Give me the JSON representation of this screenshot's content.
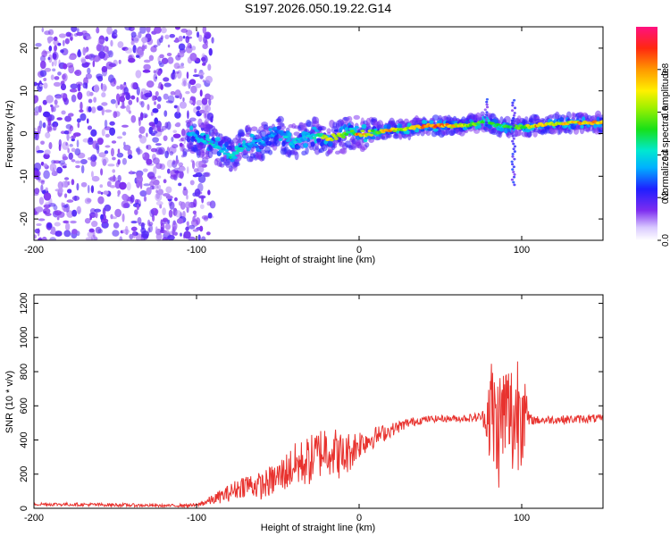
{
  "title": "S197.2026.050.19.22.G14",
  "colors": {
    "snr_line": "#e8322e",
    "axis": "#000000"
  },
  "chart_data": [
    {
      "type": "heatmap",
      "name": "spectrogram",
      "xlabel": "Height of straight line (km)",
      "ylabel": "Frequency (Hz)",
      "xlim": [
        -200,
        150
      ],
      "ylim": [
        -25,
        25
      ],
      "xticks": [
        "-200",
        "-100",
        "0",
        "100"
      ],
      "yticks": [
        "-20",
        "-10",
        "0",
        "10",
        "20"
      ],
      "xtick_values": [
        -200,
        -100,
        0,
        100
      ],
      "ytick_values": [
        -20,
        -10,
        0,
        10,
        20
      ],
      "colorbar": {
        "label": "Normalized spectral amplitude",
        "range": [
          0,
          1
        ],
        "ticks": [
          "0.0",
          "0.2",
          "0.4",
          "0.6",
          "0.8"
        ],
        "tick_values": [
          0.0,
          0.2,
          0.4,
          0.6,
          0.8
        ]
      },
      "noise_region_x": [
        -200,
        -95
      ],
      "ridge": [
        {
          "x": -105,
          "y": 0.0,
          "a": 0.35
        },
        {
          "x": -95,
          "y": -1.5,
          "a": 0.45
        },
        {
          "x": -85,
          "y": -3.5,
          "a": 0.4
        },
        {
          "x": -78,
          "y": -5.5,
          "a": 0.5
        },
        {
          "x": -70,
          "y": -2.5,
          "a": 0.4
        },
        {
          "x": -60,
          "y": -2.0,
          "a": 0.35
        },
        {
          "x": -50,
          "y": 0.5,
          "a": 0.35
        },
        {
          "x": -42,
          "y": -2.0,
          "a": 0.45
        },
        {
          "x": -35,
          "y": -1.0,
          "a": 0.4
        },
        {
          "x": -25,
          "y": -0.5,
          "a": 0.45
        },
        {
          "x": -18,
          "y": -1.0,
          "a": 0.85
        },
        {
          "x": -10,
          "y": -0.5,
          "a": 0.6
        },
        {
          "x": -5,
          "y": 0.5,
          "a": 0.5
        },
        {
          "x": 0,
          "y": 0.0,
          "a": 0.9
        },
        {
          "x": 10,
          "y": 0.3,
          "a": 0.6
        },
        {
          "x": 18,
          "y": 0.8,
          "a": 0.85
        },
        {
          "x": 30,
          "y": 1.2,
          "a": 0.65
        },
        {
          "x": 40,
          "y": 1.8,
          "a": 0.9
        },
        {
          "x": 50,
          "y": 1.8,
          "a": 0.9
        },
        {
          "x": 60,
          "y": 1.8,
          "a": 0.75
        },
        {
          "x": 70,
          "y": 2.2,
          "a": 0.6
        },
        {
          "x": 78,
          "y": 3.0,
          "a": 0.55
        },
        {
          "x": 85,
          "y": 1.8,
          "a": 0.5
        },
        {
          "x": 92,
          "y": 1.5,
          "a": 0.55
        },
        {
          "x": 100,
          "y": 1.5,
          "a": 0.65
        },
        {
          "x": 108,
          "y": 1.8,
          "a": 0.85
        },
        {
          "x": 120,
          "y": 2.3,
          "a": 0.75
        },
        {
          "x": 135,
          "y": 2.5,
          "a": 0.8
        },
        {
          "x": 150,
          "y": 2.6,
          "a": 0.85
        }
      ]
    },
    {
      "type": "line",
      "name": "snr",
      "xlabel": "Height of straight line (km)",
      "ylabel": "SNR (10 * v/v)",
      "xlim": [
        -200,
        150
      ],
      "ylim": [
        0,
        1250
      ],
      "xticks": [
        "-200",
        "-100",
        "0",
        "100"
      ],
      "yticks": [
        "0",
        "200",
        "400",
        "600",
        "800",
        "1000",
        "1200"
      ],
      "xtick_values": [
        -200,
        -100,
        0,
        100
      ],
      "ytick_values": [
        0,
        200,
        400,
        600,
        800,
        1000,
        1200
      ],
      "series": [
        {
          "name": "SNR",
          "x": [
            -200,
            -150,
            -120,
            -100,
            -90,
            -80,
            -70,
            -60,
            -50,
            -40,
            -30,
            -20,
            -10,
            0,
            10,
            20,
            30,
            40,
            50,
            60,
            70,
            75,
            78,
            80,
            85,
            90,
            95,
            100,
            103,
            105,
            110,
            120,
            130,
            140,
            150
          ],
          "y": [
            25,
            20,
            15,
            18,
            50,
            90,
            140,
            130,
            180,
            250,
            280,
            360,
            300,
            380,
            420,
            460,
            500,
            520,
            525,
            525,
            530,
            535,
            520,
            600,
            450,
            580,
            500,
            680,
            520,
            520,
            515,
            520,
            520,
            525,
            525
          ],
          "jitter": [
            10,
            10,
            8,
            10,
            30,
            50,
            70,
            80,
            100,
            130,
            150,
            160,
            140,
            90,
            60,
            40,
            30,
            20,
            20,
            20,
            25,
            30,
            80,
            350,
            380,
            320,
            380,
            420,
            150,
            30,
            25,
            25,
            25,
            25,
            25
          ]
        }
      ]
    }
  ]
}
